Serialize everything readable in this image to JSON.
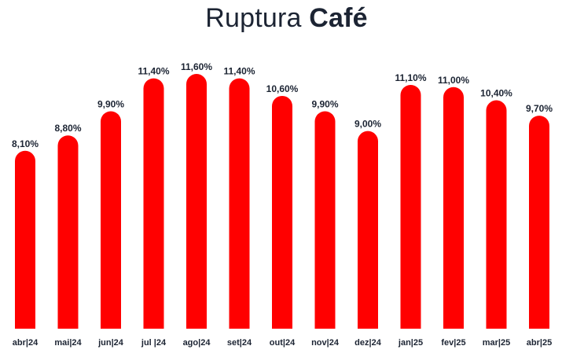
{
  "title": {
    "light": "Ruptura",
    "bold": "Café"
  },
  "colors": {
    "bar": "#ff0000",
    "text": "#1c2433"
  },
  "chart_data": {
    "type": "bar",
    "title": "Ruptura Café",
    "xlabel": "",
    "ylabel": "",
    "ylim": [
      0,
      14.4
    ],
    "grid": false,
    "legend": "none",
    "categories": [
      "abr|24",
      "mai|24",
      "jun|24",
      "jul |24",
      "ago|24",
      "set|24",
      "out|24",
      "nov|24",
      "dez|24",
      "jan|25",
      "fev|25",
      "mar|25",
      "abr|25"
    ],
    "values": [
      8.1,
      8.8,
      9.9,
      11.4,
      11.6,
      11.4,
      10.6,
      9.9,
      9.0,
      11.1,
      11.0,
      10.4,
      9.7
    ],
    "labels": [
      "8,10%",
      "8,80%",
      "9,90%",
      "11,40%",
      "11,60%",
      "11,40%",
      "10,60%",
      "9,90%",
      "9,00%",
      "11,10%",
      "11,00%",
      "10,40%",
      "9,70%"
    ]
  }
}
